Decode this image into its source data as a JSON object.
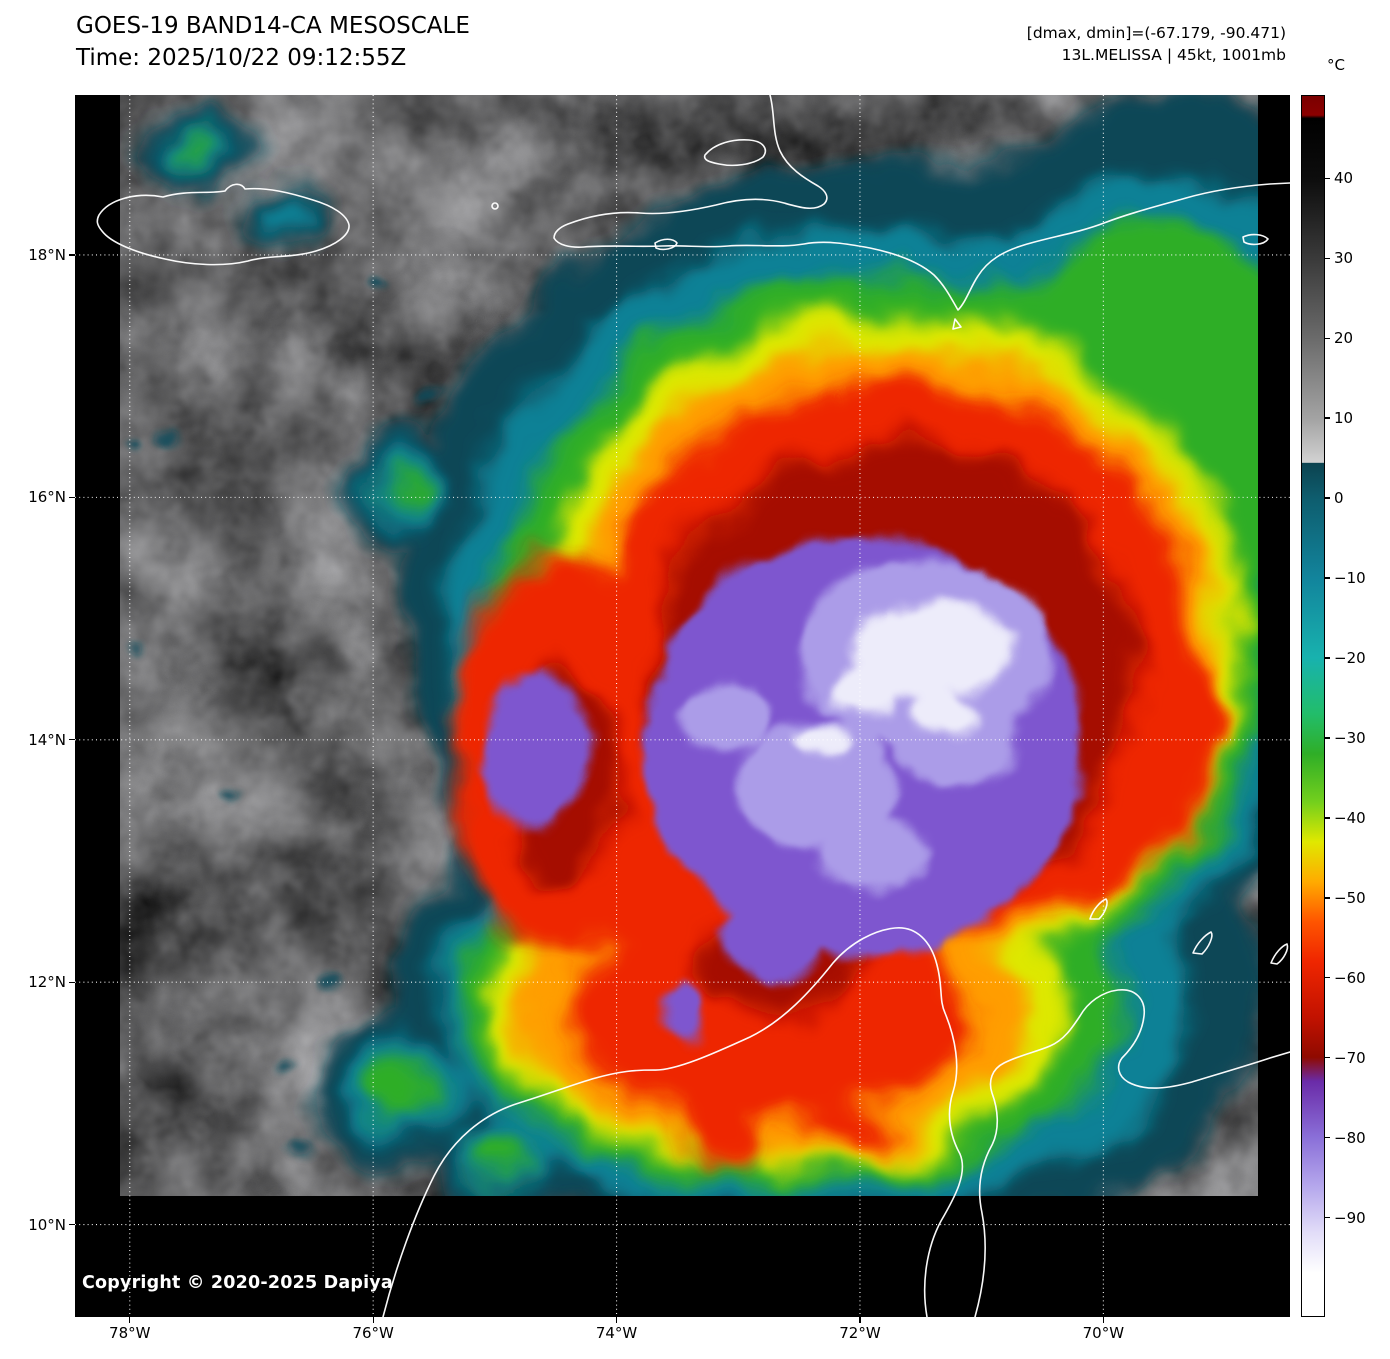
{
  "header": {
    "title": "GOES-19 BAND14-CA MESOSCALE",
    "time_line": "Time: 2025/10/22 09:12:55Z",
    "dmax_dmin": "[dmax, dmin]=(-67.179, -90.471)",
    "storm_info": "13L.MELISSA | 45kt, 1001mb"
  },
  "map": {
    "copyright": "Copyright © 2020-2025 Dapiya",
    "lat_ticks": [
      {
        "label": "18°N",
        "lat": 18
      },
      {
        "label": "16°N",
        "lat": 16
      },
      {
        "label": "14°N",
        "lat": 14
      },
      {
        "label": "12°N",
        "lat": 12
      },
      {
        "label": "10°N",
        "lat": 10
      }
    ],
    "lon_ticks": [
      {
        "label": "78°W",
        "lon": 78
      },
      {
        "label": "76°W",
        "lon": 76
      },
      {
        "label": "74°W",
        "lon": 74
      },
      {
        "label": "72°W",
        "lon": 72
      },
      {
        "label": "70°W",
        "lon": 70
      }
    ]
  },
  "colorbar": {
    "unit": "°C",
    "value_range": [
      50.4,
      -102.4
    ],
    "ticks": [
      {
        "label": "40",
        "value": 40
      },
      {
        "label": "30",
        "value": 30
      },
      {
        "label": "20",
        "value": 20
      },
      {
        "label": "10",
        "value": 10
      },
      {
        "label": "0",
        "value": 0
      },
      {
        "label": "−10",
        "value": -10
      },
      {
        "label": "−20",
        "value": -20
      },
      {
        "label": "−30",
        "value": -30
      },
      {
        "label": "−40",
        "value": -40
      },
      {
        "label": "−50",
        "value": -50
      },
      {
        "label": "−60",
        "value": -60
      },
      {
        "label": "−70",
        "value": -70
      },
      {
        "label": "−80",
        "value": -80
      },
      {
        "label": "−90",
        "value": -90
      }
    ],
    "stops": [
      {
        "value": 50.4,
        "color": "#7a0000"
      },
      {
        "value": 48.0,
        "color": "#8b0000"
      },
      {
        "value": 47.6,
        "color": "#000000"
      },
      {
        "value": 40,
        "color": "#0d0d0d"
      },
      {
        "value": 30,
        "color": "#3a3a3a"
      },
      {
        "value": 20,
        "color": "#6b6b6b"
      },
      {
        "value": 10,
        "color": "#a3a3a3"
      },
      {
        "value": 4.5,
        "color": "#d2d2d2"
      },
      {
        "value": 4.4,
        "color": "#0c4350"
      },
      {
        "value": 0,
        "color": "#0e5d6e"
      },
      {
        "value": -10,
        "color": "#12849c"
      },
      {
        "value": -20,
        "color": "#18b2ae"
      },
      {
        "value": -27,
        "color": "#22bd6a"
      },
      {
        "value": -32,
        "color": "#2fae27"
      },
      {
        "value": -38,
        "color": "#73cf1d"
      },
      {
        "value": -43,
        "color": "#e0e800"
      },
      {
        "value": -48,
        "color": "#ffab00"
      },
      {
        "value": -53,
        "color": "#ff5500"
      },
      {
        "value": -58,
        "color": "#ef2600"
      },
      {
        "value": -65,
        "color": "#c21200"
      },
      {
        "value": -70,
        "color": "#8f0a00"
      },
      {
        "value": -73,
        "color": "#6a2ba8"
      },
      {
        "value": -80,
        "color": "#8a6fd8"
      },
      {
        "value": -86,
        "color": "#b4a6ec"
      },
      {
        "value": -92,
        "color": "#e2ddf8"
      },
      {
        "value": -97,
        "color": "#ffffff"
      },
      {
        "value": -102.4,
        "color": "#ffffff"
      }
    ]
  }
}
